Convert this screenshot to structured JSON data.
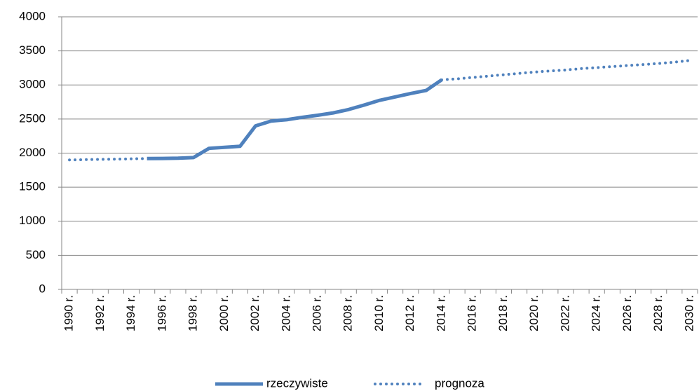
{
  "chart_data": {
    "type": "line",
    "categories": [
      "1990 r.",
      null,
      "1992 r.",
      null,
      "1994 r.",
      null,
      "1996 r.",
      null,
      "1998 r.",
      null,
      "2000 r.",
      null,
      "2002 r.",
      null,
      "2004 r.",
      null,
      "2006 r.",
      null,
      "2008 r.",
      null,
      "2010 r.",
      null,
      "2012 r.",
      null,
      "2014 r.",
      null,
      "2016 r.",
      null,
      "2018 r.",
      null,
      "2020 r.",
      null,
      "2022 r.",
      null,
      "2024 r.",
      null,
      "2026 r.",
      null,
      "2028 r.",
      null,
      "2030 r."
    ],
    "series": [
      {
        "name": "rzeczywiste",
        "color": "#4f81bd",
        "line_style": "solid",
        "values": [
          null,
          null,
          null,
          null,
          null,
          1920,
          1922,
          1925,
          1935,
          2070,
          2085,
          2100,
          2400,
          2470,
          2490,
          2525,
          2555,
          2590,
          2640,
          2705,
          2775,
          2825,
          2875,
          2920,
          3075,
          null,
          null,
          null,
          null,
          null,
          null,
          null,
          null,
          null,
          null,
          null,
          null,
          null,
          null,
          null,
          null
        ]
      },
      {
        "name": "prognoza",
        "color": "#4f81bd",
        "line_style": "dotted",
        "values": [
          1900,
          1904,
          1908,
          1912,
          1916,
          1920,
          null,
          null,
          null,
          null,
          null,
          null,
          null,
          null,
          null,
          null,
          null,
          null,
          null,
          null,
          null,
          null,
          null,
          null,
          3075,
          3090,
          3110,
          3130,
          3150,
          3170,
          3190,
          3205,
          3220,
          3240,
          3255,
          3270,
          3285,
          3300,
          3315,
          3335,
          3360
        ]
      }
    ],
    "ylim": [
      0,
      4000
    ],
    "yticks": [
      0,
      500,
      1000,
      1500,
      2000,
      2500,
      3000,
      3500,
      4000
    ],
    "grid": true,
    "legend": "bottom"
  }
}
